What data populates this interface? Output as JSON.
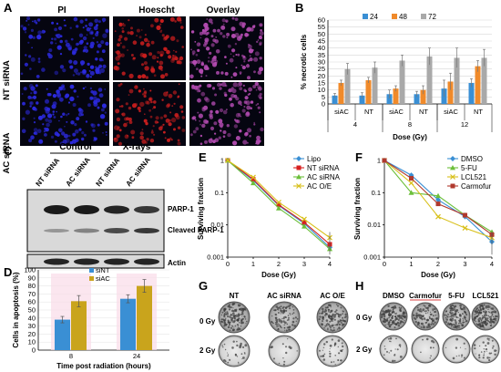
{
  "panels": {
    "A": {
      "label": "A",
      "columns": [
        "PI",
        "Hoescht",
        "Overlay"
      ],
      "rows": [
        "NT siRNA",
        "AC siRNA"
      ],
      "colors": {
        "PI": "#2c2ae0",
        "Hoescht": "#c81e1e",
        "Overlay": "#b24bb0"
      }
    },
    "B": {
      "label": "B",
      "legend": [
        "24",
        "48",
        "72"
      ],
      "group_labels": [
        "siAC",
        "NT",
        "siAC",
        "NT",
        "siAC",
        "NT"
      ],
      "dose_labels": [
        "4",
        "8",
        "12"
      ],
      "xlabel": "Dose (Gy)",
      "ylabel": "% necrotic cells",
      "yticks": [
        "0",
        "5",
        "10",
        "15",
        "20",
        "25",
        "30",
        "35",
        "40",
        "45",
        "50",
        "55",
        "60"
      ]
    },
    "C": {
      "label": "C",
      "group_labels": [
        "Control",
        "X-rays"
      ],
      "lane_labels": [
        "NT siRNA",
        "AC siRNA",
        "NT siRNA",
        "AC siRNA"
      ],
      "band_labels": [
        "PARP-1",
        "Cleaved PARP-1",
        "Actin"
      ]
    },
    "D": {
      "label": "D",
      "legend": [
        "siNT",
        "siAC"
      ],
      "xlabel": "Time post radiation (hours)",
      "ylabel": "Cells in apoptosis (%)",
      "yticks": [
        "0",
        "10",
        "20",
        "30",
        "40",
        "50",
        "60",
        "70",
        "80",
        "90",
        "100"
      ],
      "categories": [
        "8",
        "24"
      ]
    },
    "E": {
      "label": "E",
      "xlabel": "Dose (Gy)",
      "ylabel": "Surviving fraction",
      "xticks": [
        "0",
        "1",
        "2",
        "3",
        "4"
      ],
      "yticks": [
        "1",
        "0.1",
        "0.01",
        "0.001"
      ]
    },
    "F": {
      "label": "F",
      "xlabel": "Dose (Gy)",
      "ylabel": "Surviving fraction",
      "xticks": [
        "0",
        "1",
        "2",
        "3",
        "4"
      ],
      "yticks": [
        "1",
        "0.1",
        "0.01",
        "0.001"
      ]
    },
    "G": {
      "label": "G",
      "columns": [
        "NT",
        "AC siRNA",
        "AC O/E"
      ],
      "rows": [
        "0 Gy",
        "2 Gy"
      ]
    },
    "H": {
      "label": "H",
      "columns": [
        "DMSO",
        "Carmofur",
        "5-FU",
        "LCL521"
      ],
      "rows": [
        "0 Gy",
        "2 Gy"
      ]
    }
  },
  "chart_data": [
    {
      "panel": "B",
      "type": "bar",
      "categories": [
        "siAC 4",
        "NT 4",
        "siAC 8",
        "NT 8",
        "siAC 12",
        "NT 12"
      ],
      "ylabel": "% necrotic cells",
      "xlabel": "Dose (Gy)",
      "ylim": [
        0,
        60
      ],
      "series": [
        {
          "name": "24",
          "color": "#3a8fd4",
          "values": [
            6,
            6,
            7,
            7,
            11,
            15
          ],
          "errors": [
            1.5,
            2,
            3,
            2,
            6,
            3
          ]
        },
        {
          "name": "48",
          "color": "#f08a2a",
          "values": [
            15,
            17,
            11,
            10,
            16,
            27
          ],
          "errors": [
            2,
            2,
            2,
            3,
            6,
            4
          ]
        },
        {
          "name": "72",
          "color": "#a9a9a9",
          "values": [
            25,
            26,
            31,
            34,
            33,
            33
          ],
          "errors": [
            4,
            4,
            4,
            6,
            7,
            6
          ]
        }
      ]
    },
    {
      "panel": "D",
      "type": "bar",
      "categories": [
        "8",
        "24"
      ],
      "xlabel": "Time post radiation (hours)",
      "ylabel": "Cells in apoptosis (%)",
      "ylim": [
        0,
        100
      ],
      "series": [
        {
          "name": "siNT",
          "color": "#3a8fd4",
          "values": [
            38,
            64
          ],
          "errors": [
            4,
            5
          ]
        },
        {
          "name": "siAC",
          "color": "#c9a41c",
          "values": [
            61,
            80
          ],
          "errors": [
            7,
            8
          ]
        }
      ]
    },
    {
      "panel": "E",
      "type": "line",
      "x": [
        0,
        1,
        2,
        3,
        4
      ],
      "xlabel": "Dose (Gy)",
      "ylabel": "Surviving fraction",
      "ylim": [
        0.001,
        1
      ],
      "log_y": true,
      "series": [
        {
          "name": "Lipo",
          "color": "#3a8fd4",
          "marker": "diamond",
          "values": [
            1,
            0.24,
            0.04,
            0.011,
            0.002
          ]
        },
        {
          "name": "NT siRNA",
          "color": "#d62020",
          "marker": "square",
          "values": [
            1,
            0.26,
            0.042,
            0.012,
            0.0025
          ]
        },
        {
          "name": "AC siRNA",
          "color": "#6cbf3a",
          "marker": "triangle",
          "values": [
            1,
            0.2,
            0.033,
            0.009,
            0.0018
          ]
        },
        {
          "name": "AC O/E",
          "color": "#d8c01a",
          "marker": "x",
          "values": [
            1,
            0.3,
            0.05,
            0.015,
            0.004
          ]
        }
      ]
    },
    {
      "panel": "F",
      "type": "line",
      "x": [
        0,
        1,
        2,
        3,
        4
      ],
      "xlabel": "Dose (Gy)",
      "ylabel": "Surviving fraction",
      "ylim": [
        0.001,
        1
      ],
      "log_y": true,
      "series": [
        {
          "name": "DMSO",
          "color": "#3a8fd4",
          "marker": "diamond",
          "values": [
            1,
            0.35,
            0.06,
            0.018,
            0.003
          ]
        },
        {
          "name": "5-FU",
          "color": "#6cbf3a",
          "marker": "triangle",
          "values": [
            1,
            0.1,
            0.08,
            0.02,
            0.006
          ]
        },
        {
          "name": "LCL521",
          "color": "#d8c01a",
          "marker": "x",
          "values": [
            1,
            0.2,
            0.018,
            0.008,
            0.004
          ]
        },
        {
          "name": "Carmofur",
          "color": "#b03a2e",
          "marker": "square",
          "values": [
            1,
            0.28,
            0.045,
            0.02,
            0.005
          ]
        }
      ]
    }
  ]
}
